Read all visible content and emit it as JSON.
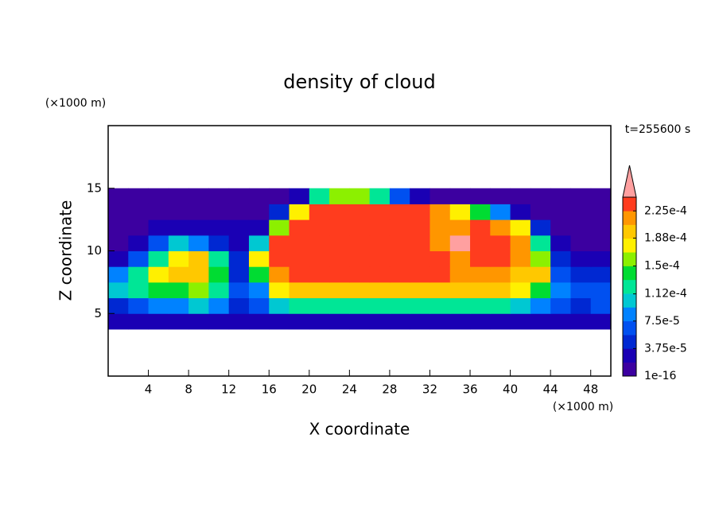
{
  "chart_data": {
    "type": "contour",
    "title": "density of cloud",
    "xlabel": "X coordinate",
    "ylabel": "Z coordinate",
    "xunit": "(×1000 m)",
    "yunit": "(×1000 m)",
    "annotation": "t=255600 s",
    "xlim": [
      0,
      50
    ],
    "ylim": [
      0,
      20
    ],
    "xticks": [
      4,
      8,
      12,
      16,
      20,
      24,
      28,
      32,
      36,
      40,
      44,
      48
    ],
    "yticks": [
      5,
      10,
      15
    ],
    "x_edges": [
      0,
      2,
      4,
      6,
      8,
      10,
      12,
      14,
      16,
      18,
      20,
      22,
      24,
      26,
      28,
      30,
      32,
      34,
      36,
      38,
      40,
      42,
      44,
      46,
      48,
      50
    ],
    "z_edges": [
      3.75,
      5,
      6.25,
      7.5,
      8.75,
      10,
      11.25,
      12.5,
      13.75,
      15
    ],
    "values": [
      [
        3e-05,
        3e-05,
        3e-05,
        3e-05,
        3e-05,
        3e-05,
        3e-05,
        3e-05,
        3e-05,
        3e-05,
        3e-05,
        3e-05,
        3e-05,
        3e-05,
        3e-05,
        3e-05,
        3e-05,
        3e-05,
        3e-05,
        3e-05,
        3e-05,
        3e-05,
        3e-05,
        3e-05,
        3e-05
      ],
      [
        5e-05,
        6e-05,
        8e-05,
        9e-05,
        0.0001,
        8e-05,
        5e-05,
        6e-05,
        0.00011,
        0.00012,
        0.00013,
        0.00013,
        0.00013,
        0.00013,
        0.00013,
        0.00013,
        0.00013,
        0.00013,
        0.00012,
        0.00012,
        0.00011,
        9e-05,
        6e-05,
        5e-05,
        6e-05
      ],
      [
        0.00011,
        0.00013,
        0.00015,
        0.00014,
        0.00016,
        0.00012,
        6e-05,
        8e-05,
        0.00017,
        0.00019,
        0.0002,
        0.0002,
        0.0002,
        0.0002,
        0.0002,
        0.0002,
        0.0002,
        0.0002,
        0.00019,
        0.00019,
        0.00018,
        0.00015,
        8e-05,
        6e-05,
        7e-05
      ],
      [
        8e-05,
        0.00013,
        0.00017,
        0.00019,
        0.0002,
        0.00015,
        5e-05,
        0.00014,
        0.00022,
        0.00023,
        0.00023,
        0.00023,
        0.00023,
        0.00023,
        0.00023,
        0.00023,
        0.00023,
        0.00022,
        0.00022,
        0.00021,
        0.0002,
        0.00019,
        7e-05,
        4e-05,
        4e-05
      ],
      [
        3e-05,
        6e-05,
        0.00013,
        0.00018,
        0.0002,
        0.00012,
        4e-05,
        0.00018,
        0.00023,
        0.000235,
        0.000235,
        0.000235,
        0.000235,
        0.000235,
        0.000235,
        0.000235,
        0.00023,
        0.00022,
        0.000235,
        0.00023,
        0.00021,
        0.00016,
        5e-05,
        3e-05,
        3e-05
      ],
      [
        1e-05,
        3e-05,
        6e-05,
        0.0001,
        9e-05,
        4e-05,
        3e-05,
        0.0001,
        0.00023,
        0.000235,
        0.000235,
        0.000235,
        0.000235,
        0.000235,
        0.000235,
        0.000235,
        0.00022,
        0.00025,
        0.00023,
        0.000235,
        0.00022,
        0.00012,
        3e-05,
        1e-05,
        1e-05
      ],
      [
        1e-05,
        1e-05,
        2e-05,
        3e-05,
        3e-05,
        2e-05,
        2e-05,
        3e-05,
        0.00016,
        0.000235,
        0.000235,
        0.000235,
        0.000235,
        0.000235,
        0.000235,
        0.000235,
        0.00022,
        0.00022,
        0.000235,
        0.00022,
        0.00018,
        5e-05,
        1e-05,
        1e-05,
        1e-05
      ],
      [
        1e-05,
        1e-05,
        1e-05,
        1e-05,
        1e-05,
        1e-05,
        1e-05,
        1e-05,
        4e-05,
        0.00018,
        0.00023,
        0.00023,
        0.00023,
        0.00023,
        0.00023,
        0.00023,
        0.00021,
        0.00018,
        0.00015,
        8e-05,
        2e-05,
        1e-05,
        1e-05,
        1e-05,
        1e-05
      ],
      [
        1e-05,
        1e-05,
        1e-05,
        1e-05,
        1e-05,
        1e-05,
        1e-05,
        1e-05,
        1e-05,
        3e-05,
        0.00012,
        0.00016,
        0.00016,
        0.00012,
        6e-05,
        3e-05,
        1e-05,
        1e-05,
        1e-05,
        1e-05,
        1e-05,
        1e-05,
        1e-05,
        1e-05,
        1e-05
      ]
    ],
    "colorbar": {
      "clim": [
        1e-16,
        0.00024375
      ],
      "ticks": [
        1e-16,
        {
          "value": 3.75e-05,
          "label": "3.75e-5"
        },
        {
          "value": 7.5e-05,
          "label": "7.5e-5"
        },
        {
          "value": 0.000112,
          "label": "1.12e-4"
        },
        {
          "value": 0.00015,
          "label": "1.5e-4"
        },
        {
          "value": 0.000188,
          "label": "1.88e-4"
        },
        {
          "value": 0.000225,
          "label": "2.25e-4"
        }
      ],
      "colors": [
        "#3c00a0",
        "#1a00b4",
        "#0028d2",
        "#0050f0",
        "#0082ff",
        "#00c8d2",
        "#00e696",
        "#00dc32",
        "#8cf000",
        "#fff000",
        "#ffc800",
        "#ff9600",
        "#ff3c1e"
      ],
      "extend_color": "#ffa0a0"
    }
  }
}
